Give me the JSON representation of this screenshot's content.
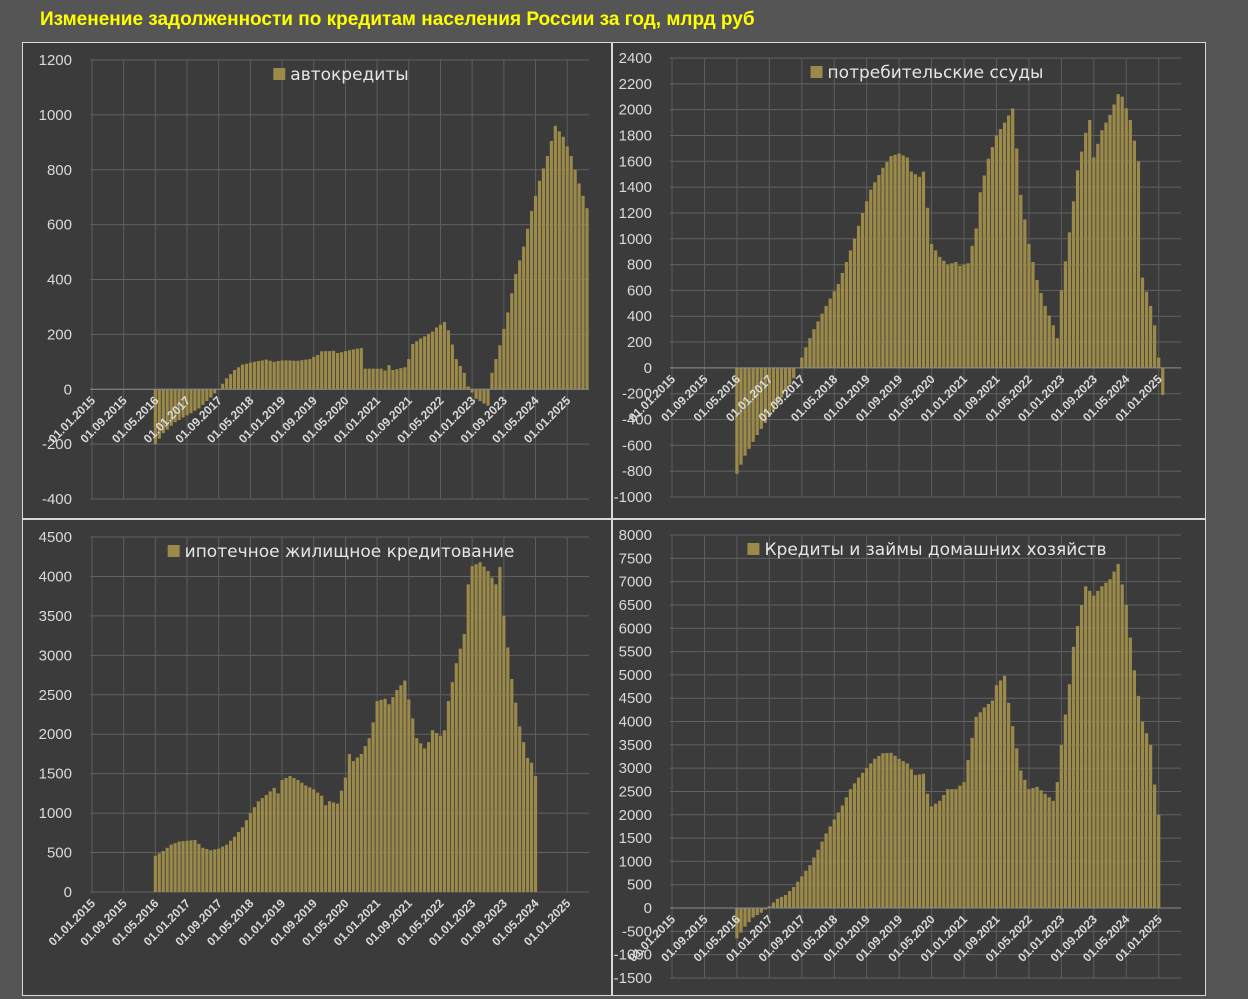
{
  "title": "Изменение задолженности по кредитам населения России за год, млрд руб",
  "colors": {
    "bar": "#9b8a4a",
    "background": "#3b3b3b",
    "page": "#555555",
    "grid": "#6a6a6a",
    "title": "#ffff00"
  },
  "chart_data": [
    {
      "type": "bar",
      "legend": "автокредиты",
      "legend_position": "top-center",
      "grid": true,
      "ylim": [
        -400,
        1200
      ],
      "yticks": [
        -400,
        -200,
        0,
        200,
        400,
        600,
        800,
        1000,
        1200
      ],
      "xtick_labels": [
        "01.01.2015",
        "01.09.2015",
        "01.05.2016",
        "01.01.2017",
        "01.09.2017",
        "01.05.2018",
        "01.01.2019",
        "01.09.2019",
        "01.05.2020",
        "01.01.2021",
        "01.09.2021",
        "01.05.2022",
        "01.01.2023",
        "01.09.2023",
        "01.05.2024",
        "01.01.2025"
      ],
      "x_start": "2015-01",
      "x_end": "2025-06",
      "values": [
        null,
        null,
        null,
        null,
        null,
        null,
        null,
        null,
        null,
        null,
        null,
        null,
        null,
        null,
        null,
        null,
        null,
        null,
        null,
        null,
        null,
        null,
        null,
        null,
        null,
        null,
        null,
        null,
        null,
        null,
        null,
        null,
        null,
        null,
        null,
        null,
        null,
        null,
        null,
        null,
        null,
        null,
        null,
        null,
        null,
        null,
        null,
        null,
        null,
        null,
        null,
        null,
        null,
        null,
        null,
        null,
        null,
        null,
        null,
        null,
        null,
        null,
        null,
        null,
        null,
        null,
        null,
        null,
        null,
        null,
        null,
        null,
        null,
        null,
        null,
        null,
        null,
        null,
        null,
        null,
        null,
        null,
        null,
        null,
        null,
        null,
        null,
        null,
        null,
        null,
        null,
        null,
        null,
        null,
        null,
        null,
        null,
        null,
        null,
        null,
        null,
        null,
        null,
        null,
        null,
        null,
        null,
        null,
        null,
        null,
        null,
        null,
        null,
        null,
        null,
        null,
        null,
        null,
        null,
        null,
        null,
        null,
        null,
        null,
        null,
        null
      ]
    }
  ]
}
